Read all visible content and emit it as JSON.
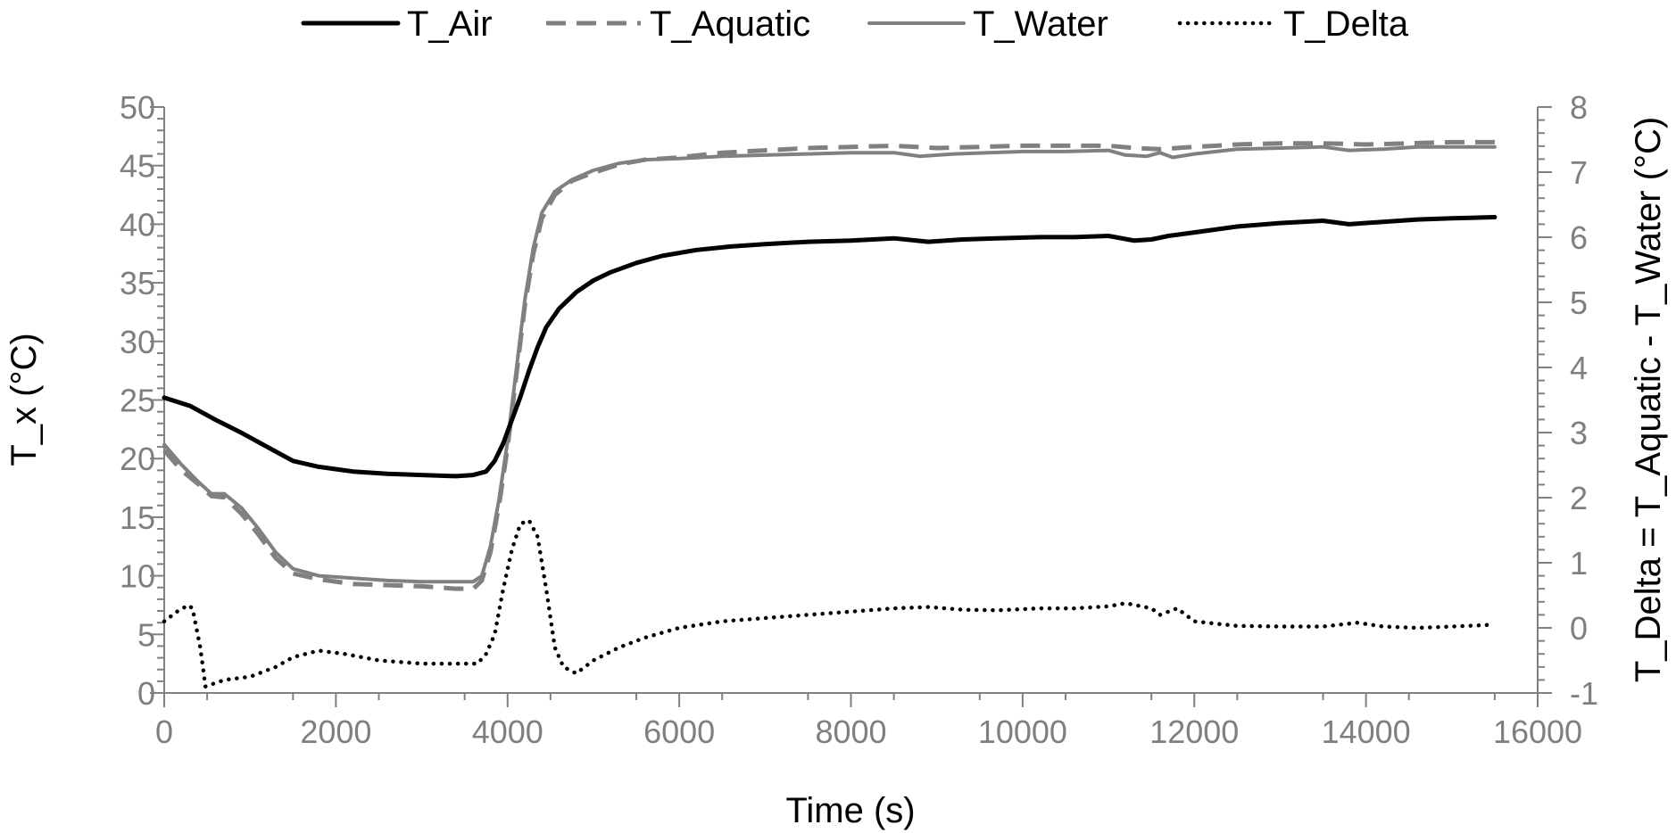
{
  "chart_data": {
    "type": "line",
    "title": "",
    "xlabel": "Time (s)",
    "ylabel": "T_x (°C)",
    "y2label": "T_Delta = T_Aquatic - T_Water (°C)",
    "xlim": [
      0,
      16000
    ],
    "ylim": [
      0,
      50
    ],
    "y2lim": [
      -1,
      8
    ],
    "x_ticks": [
      "0",
      "2000",
      "4000",
      "6000",
      "8000",
      "10000",
      "12000",
      "14000",
      "16000"
    ],
    "y_ticks": [
      "0",
      "5",
      "10",
      "15",
      "20",
      "25",
      "30",
      "35",
      "40",
      "45",
      "50"
    ],
    "y2_ticks": [
      "-1",
      "0",
      "1",
      "2",
      "3",
      "4",
      "5",
      "6",
      "7",
      "8"
    ],
    "grid": false,
    "legend_position": "top",
    "series": [
      {
        "name": "T_Air",
        "axis": "left",
        "color": "#000000",
        "style": "solid",
        "points": [
          [
            0,
            25.2
          ],
          [
            300,
            24.5
          ],
          [
            600,
            23.3
          ],
          [
            900,
            22.2
          ],
          [
            1200,
            21.0
          ],
          [
            1500,
            19.8
          ],
          [
            1800,
            19.3
          ],
          [
            2200,
            18.9
          ],
          [
            2600,
            18.7
          ],
          [
            3000,
            18.6
          ],
          [
            3400,
            18.5
          ],
          [
            3600,
            18.6
          ],
          [
            3750,
            18.9
          ],
          [
            3850,
            19.8
          ],
          [
            3950,
            21.3
          ],
          [
            4050,
            23.3
          ],
          [
            4150,
            25.3
          ],
          [
            4250,
            27.5
          ],
          [
            4350,
            29.5
          ],
          [
            4450,
            31.2
          ],
          [
            4600,
            32.8
          ],
          [
            4800,
            34.2
          ],
          [
            5000,
            35.2
          ],
          [
            5200,
            35.9
          ],
          [
            5500,
            36.7
          ],
          [
            5800,
            37.3
          ],
          [
            6200,
            37.8
          ],
          [
            6600,
            38.1
          ],
          [
            7000,
            38.3
          ],
          [
            7500,
            38.5
          ],
          [
            8000,
            38.6
          ],
          [
            8500,
            38.8
          ],
          [
            8900,
            38.5
          ],
          [
            9300,
            38.7
          ],
          [
            9700,
            38.8
          ],
          [
            10200,
            38.9
          ],
          [
            10600,
            38.9
          ],
          [
            11000,
            39.0
          ],
          [
            11300,
            38.6
          ],
          [
            11500,
            38.7
          ],
          [
            11700,
            39.0
          ],
          [
            12000,
            39.3
          ],
          [
            12500,
            39.8
          ],
          [
            13000,
            40.1
          ],
          [
            13500,
            40.3
          ],
          [
            13800,
            40.0
          ],
          [
            14200,
            40.2
          ],
          [
            14600,
            40.4
          ],
          [
            15000,
            40.5
          ],
          [
            15500,
            40.6
          ]
        ]
      },
      {
        "name": "T_Aquatic",
        "axis": "left",
        "color": "#808080",
        "style": "dashed",
        "points": [
          [
            0,
            20.7
          ],
          [
            200,
            19.0
          ],
          [
            400,
            17.8
          ],
          [
            550,
            16.8
          ],
          [
            700,
            16.7
          ],
          [
            900,
            15.3
          ],
          [
            1100,
            13.5
          ],
          [
            1300,
            11.5
          ],
          [
            1500,
            10.2
          ],
          [
            1800,
            9.7
          ],
          [
            2200,
            9.3
          ],
          [
            2600,
            9.2
          ],
          [
            3000,
            9.1
          ],
          [
            3400,
            8.9
          ],
          [
            3600,
            8.9
          ],
          [
            3700,
            9.6
          ],
          [
            3800,
            12.0
          ],
          [
            3900,
            16.0
          ],
          [
            4000,
            21.0
          ],
          [
            4100,
            27.0
          ],
          [
            4200,
            33.0
          ],
          [
            4300,
            37.5
          ],
          [
            4400,
            40.5
          ],
          [
            4550,
            42.5
          ],
          [
            4750,
            43.7
          ],
          [
            5000,
            44.4
          ],
          [
            5300,
            45.1
          ],
          [
            5600,
            45.5
          ],
          [
            6000,
            45.7
          ],
          [
            6500,
            46.1
          ],
          [
            7000,
            46.3
          ],
          [
            7500,
            46.5
          ],
          [
            8000,
            46.6
          ],
          [
            8500,
            46.7
          ],
          [
            9000,
            46.5
          ],
          [
            9500,
            46.6
          ],
          [
            10000,
            46.7
          ],
          [
            10500,
            46.7
          ],
          [
            11000,
            46.7
          ],
          [
            11300,
            46.5
          ],
          [
            11600,
            46.4
          ],
          [
            12000,
            46.6
          ],
          [
            12500,
            46.8
          ],
          [
            13000,
            46.9
          ],
          [
            13500,
            46.9
          ],
          [
            14000,
            46.8
          ],
          [
            14500,
            46.9
          ],
          [
            15000,
            47.0
          ],
          [
            15500,
            47.0
          ]
        ]
      },
      {
        "name": "T_Water",
        "axis": "left",
        "color": "#808080",
        "style": "solid",
        "points": [
          [
            0,
            21.2
          ],
          [
            200,
            19.5
          ],
          [
            400,
            18.0
          ],
          [
            550,
            17.0
          ],
          [
            700,
            17.0
          ],
          [
            900,
            15.8
          ],
          [
            1100,
            14.0
          ],
          [
            1300,
            12.0
          ],
          [
            1500,
            10.6
          ],
          [
            1800,
            10.0
          ],
          [
            2200,
            9.8
          ],
          [
            2600,
            9.6
          ],
          [
            3000,
            9.5
          ],
          [
            3400,
            9.5
          ],
          [
            3600,
            9.5
          ],
          [
            3700,
            10.0
          ],
          [
            3800,
            12.5
          ],
          [
            3900,
            16.5
          ],
          [
            4000,
            21.5
          ],
          [
            4100,
            27.5
          ],
          [
            4200,
            33.5
          ],
          [
            4300,
            38.0
          ],
          [
            4400,
            41.0
          ],
          [
            4550,
            42.8
          ],
          [
            4750,
            43.8
          ],
          [
            5000,
            44.6
          ],
          [
            5300,
            45.2
          ],
          [
            5600,
            45.5
          ],
          [
            6000,
            45.6
          ],
          [
            6500,
            45.8
          ],
          [
            7000,
            45.9
          ],
          [
            7500,
            46.0
          ],
          [
            8000,
            46.1
          ],
          [
            8500,
            46.1
          ],
          [
            8800,
            45.8
          ],
          [
            9200,
            46.0
          ],
          [
            9600,
            46.1
          ],
          [
            10000,
            46.2
          ],
          [
            10500,
            46.2
          ],
          [
            11000,
            46.3
          ],
          [
            11200,
            45.9
          ],
          [
            11450,
            45.8
          ],
          [
            11600,
            46.1
          ],
          [
            11750,
            45.7
          ],
          [
            12000,
            46.0
          ],
          [
            12500,
            46.4
          ],
          [
            13000,
            46.5
          ],
          [
            13500,
            46.6
          ],
          [
            13800,
            46.3
          ],
          [
            14200,
            46.4
          ],
          [
            14600,
            46.6
          ],
          [
            15000,
            46.6
          ],
          [
            15500,
            46.6
          ]
        ]
      },
      {
        "name": "T_Delta",
        "axis": "right",
        "color": "#000000",
        "style": "dotted",
        "points": [
          [
            0,
            0.1
          ],
          [
            150,
            0.25
          ],
          [
            280,
            0.35
          ],
          [
            330,
            0.3
          ],
          [
            420,
            -0.3
          ],
          [
            480,
            -0.9
          ],
          [
            700,
            -0.8
          ],
          [
            1000,
            -0.75
          ],
          [
            1300,
            -0.6
          ],
          [
            1500,
            -0.45
          ],
          [
            1800,
            -0.35
          ],
          [
            2100,
            -0.4
          ],
          [
            2500,
            -0.5
          ],
          [
            3000,
            -0.55
          ],
          [
            3500,
            -0.55
          ],
          [
            3650,
            -0.55
          ],
          [
            3750,
            -0.4
          ],
          [
            3850,
            -0.1
          ],
          [
            3950,
            0.6
          ],
          [
            4050,
            1.2
          ],
          [
            4150,
            1.6
          ],
          [
            4250,
            1.65
          ],
          [
            4350,
            1.4
          ],
          [
            4450,
            0.6
          ],
          [
            4550,
            -0.3
          ],
          [
            4650,
            -0.6
          ],
          [
            4800,
            -0.7
          ],
          [
            5000,
            -0.5
          ],
          [
            5300,
            -0.3
          ],
          [
            5600,
            -0.15
          ],
          [
            6000,
            0.0
          ],
          [
            6500,
            0.1
          ],
          [
            7000,
            0.15
          ],
          [
            7500,
            0.2
          ],
          [
            8000,
            0.25
          ],
          [
            8500,
            0.3
          ],
          [
            8900,
            0.32
          ],
          [
            9300,
            0.28
          ],
          [
            9700,
            0.27
          ],
          [
            10200,
            0.3
          ],
          [
            10600,
            0.3
          ],
          [
            11000,
            0.33
          ],
          [
            11200,
            0.38
          ],
          [
            11500,
            0.3
          ],
          [
            11600,
            0.2
          ],
          [
            11800,
            0.3
          ],
          [
            12000,
            0.1
          ],
          [
            12500,
            0.03
          ],
          [
            13000,
            0.02
          ],
          [
            13500,
            0.02
          ],
          [
            13900,
            0.08
          ],
          [
            14200,
            0.02
          ],
          [
            14600,
            0.0
          ],
          [
            15000,
            0.02
          ],
          [
            15500,
            0.05
          ]
        ]
      }
    ]
  }
}
